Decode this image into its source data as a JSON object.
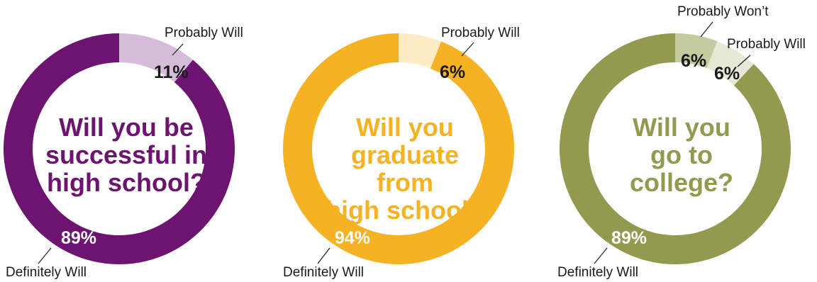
{
  "chart_data": [
    {
      "type": "pie",
      "title": "Will you be successful in high school?",
      "title_lines": [
        "Will you be",
        "successful in",
        "high school?"
      ],
      "colors": {
        "main": "#6d1470",
        "secondary": "#d5bcd9",
        "title": "#6d1470"
      },
      "slices": [
        {
          "label": "Definitely Will",
          "value": 89,
          "value_label": "89%"
        },
        {
          "label": "Probably Will",
          "value": 11,
          "value_label": "11%"
        }
      ]
    },
    {
      "type": "pie",
      "title": "Will you graduate from high school?",
      "title_lines": [
        "Will you",
        "graduate from",
        "high school?"
      ],
      "colors": {
        "main": "#f5b223",
        "secondary": "#fdecc5",
        "title": "#f5b223"
      },
      "slices": [
        {
          "label": "Definitely Will",
          "value": 94,
          "value_label": "94%"
        },
        {
          "label": "Probably Will",
          "value": 6,
          "value_label": "6%"
        }
      ]
    },
    {
      "type": "pie",
      "title": "Will you go to college?",
      "title_lines": [
        "Will you",
        "go to",
        "college?"
      ],
      "colors": {
        "main": "#939a50",
        "secondary": "#c7caa1",
        "tertiary": "#e7e8d6",
        "title": "#939a50"
      },
      "slices": [
        {
          "label": "Definitely Will",
          "value": 89,
          "value_label": "89%"
        },
        {
          "label": "Probably Won’t",
          "value": 6,
          "value_label": "6%"
        },
        {
          "label": "Probably Will",
          "value": 6,
          "value_label": "6%"
        }
      ]
    }
  ]
}
